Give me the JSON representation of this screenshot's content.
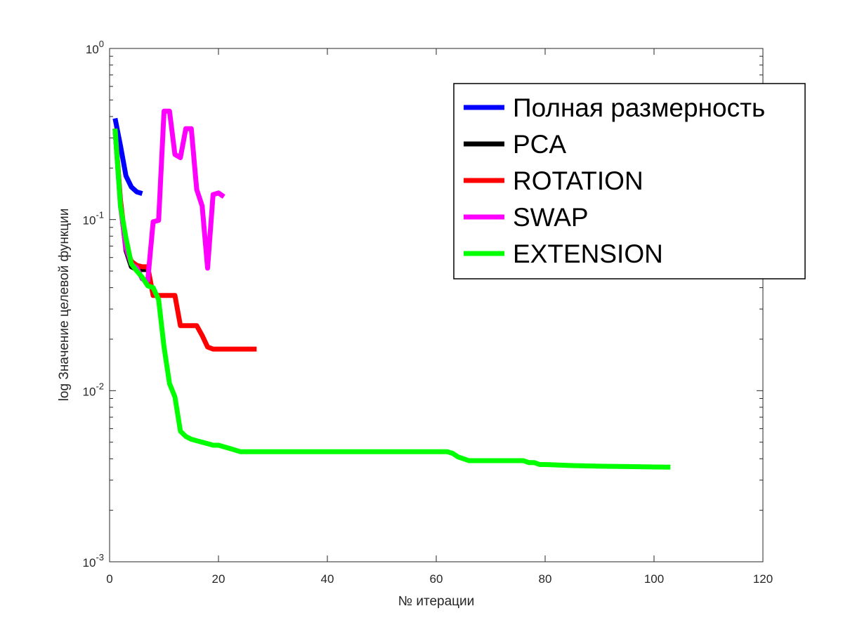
{
  "chart_data": {
    "type": "line",
    "title": "",
    "xlabel": "№ итерации",
    "ylabel": "log Значение целевой функции",
    "xscale": "linear",
    "yscale": "log",
    "xlim": [
      0,
      120
    ],
    "ylim": [
      0.001,
      1
    ],
    "x_ticks": [
      "0",
      "20",
      "40",
      "60",
      "80",
      "100",
      "120"
    ],
    "y_ticks": [
      {
        "base": "10",
        "exp": "0"
      },
      {
        "base": "10",
        "exp": "-1"
      },
      {
        "base": "10",
        "exp": "-2"
      },
      {
        "base": "10",
        "exp": "-3"
      }
    ],
    "grid": false,
    "legend_position": "top-right",
    "series": [
      {
        "name": "Полная размерность",
        "color": "#0000ff",
        "x": [
          1,
          2,
          3,
          4,
          5,
          6
        ],
        "y": [
          0.39,
          0.27,
          0.18,
          0.155,
          0.145,
          0.142
        ]
      },
      {
        "name": "PCA",
        "color": "#000000",
        "x": [
          1,
          2,
          3,
          4,
          5,
          6,
          7
        ],
        "y": [
          0.34,
          0.125,
          0.066,
          0.053,
          0.051,
          0.051,
          0.051
        ]
      },
      {
        "name": "ROTATION",
        "color": "#ff0000",
        "x": [
          1,
          2,
          3,
          4,
          5,
          6,
          7,
          8,
          9,
          10,
          11,
          12,
          13,
          14,
          15,
          16,
          17,
          18,
          19,
          20,
          21,
          22,
          23,
          24,
          25,
          26,
          27
        ],
        "y": [
          0.34,
          0.13,
          0.07,
          0.057,
          0.054,
          0.053,
          0.053,
          0.036,
          0.036,
          0.036,
          0.036,
          0.036,
          0.024,
          0.024,
          0.024,
          0.024,
          0.021,
          0.018,
          0.0175,
          0.0175,
          0.0175,
          0.0175,
          0.0175,
          0.0175,
          0.0175,
          0.0175,
          0.0175
        ]
      },
      {
        "name": "SWAP",
        "color": "#ff00ff",
        "x": [
          1,
          2,
          3,
          4,
          5,
          6,
          7,
          8,
          9,
          10,
          11,
          12,
          13,
          14,
          15,
          16,
          17,
          18,
          19,
          20,
          21
        ],
        "y": [
          0.34,
          0.12,
          0.068,
          0.055,
          0.052,
          0.045,
          0.044,
          0.097,
          0.099,
          0.43,
          0.43,
          0.24,
          0.23,
          0.34,
          0.34,
          0.15,
          0.12,
          0.052,
          0.14,
          0.143,
          0.136
        ]
      },
      {
        "name": "EXTENSION",
        "color": "#00ff00",
        "x": [
          1,
          2,
          3,
          4,
          5,
          6,
          7,
          8,
          9,
          10,
          11,
          12,
          13,
          14,
          15,
          16,
          17,
          18,
          19,
          20,
          21,
          22,
          23,
          24,
          25,
          30,
          40,
          50,
          62,
          63,
          64,
          65,
          66,
          70,
          75,
          76,
          77,
          78,
          79,
          80,
          85,
          90,
          95,
          100,
          103
        ],
        "y": [
          0.34,
          0.12,
          0.078,
          0.055,
          0.05,
          0.046,
          0.041,
          0.04,
          0.034,
          0.018,
          0.011,
          0.0092,
          0.0058,
          0.0054,
          0.0052,
          0.0051,
          0.005,
          0.0049,
          0.0048,
          0.0048,
          0.0047,
          0.0046,
          0.0045,
          0.0044,
          0.0044,
          0.0044,
          0.0044,
          0.0044,
          0.0044,
          0.0043,
          0.0041,
          0.004,
          0.0039,
          0.0039,
          0.0039,
          0.0039,
          0.0038,
          0.0038,
          0.0037,
          0.0037,
          0.00365,
          0.00362,
          0.0036,
          0.00358,
          0.00357
        ]
      }
    ]
  },
  "figure": {
    "background": "#ffffff",
    "axes_color": "#262626"
  }
}
